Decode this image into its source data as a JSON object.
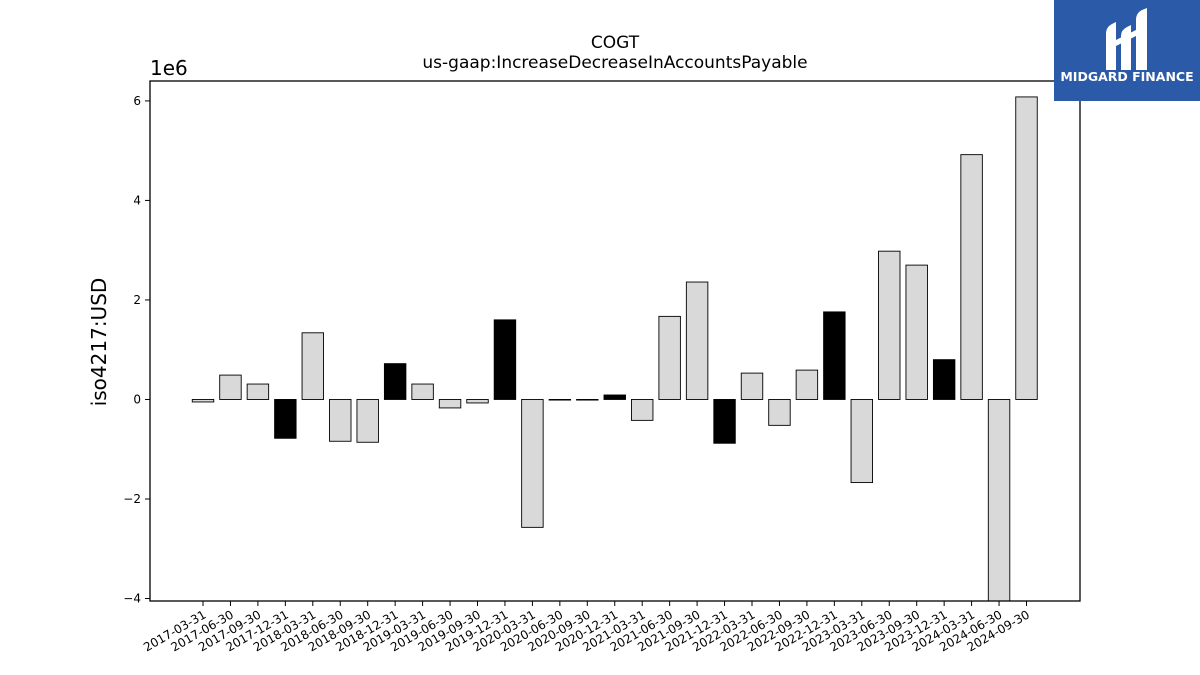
{
  "brand": {
    "name": "MIDGARD FINANCE",
    "color": "#2b5aa8",
    "icon": "midgard-logo-icon"
  },
  "chart_data": {
    "type": "bar",
    "title": "COGT",
    "subtitle": "us-gaap:IncreaseDecreaseInAccountsPayable",
    "ylabel": "iso4217:USD",
    "xlabel": "",
    "y_multiplier_label": "1e6",
    "ylim": [
      -4.05,
      6.4
    ],
    "yticks": [
      -4,
      -2,
      0,
      2,
      4,
      6
    ],
    "ytick_labels": [
      "−4",
      "−2",
      "0",
      "2",
      "4",
      "6"
    ],
    "grid": false,
    "colors": {
      "default": "#d9d9d9",
      "highlight": "#000000",
      "edge": "#000000"
    },
    "categories": [
      "2017-03-31",
      "2017-06-30",
      "2017-09-30",
      "2017-12-31",
      "2018-03-31",
      "2018-06-30",
      "2018-09-30",
      "2018-12-31",
      "2019-03-31",
      "2019-06-30",
      "2019-09-30",
      "2019-12-31",
      "2020-03-31",
      "2020-06-30",
      "2020-09-30",
      "2020-12-31",
      "2021-03-31",
      "2021-06-30",
      "2021-09-30",
      "2021-12-31",
      "2022-03-31",
      "2022-06-30",
      "2022-09-30",
      "2022-12-31",
      "2023-03-31",
      "2023-06-30",
      "2023-09-30",
      "2023-12-31",
      "2024-03-31",
      "2024-06-30",
      "2024-09-30"
    ],
    "values": [
      -0.05,
      0.49,
      0.31,
      -0.78,
      1.34,
      -0.84,
      -0.86,
      0.72,
      0.31,
      -0.17,
      -0.07,
      1.6,
      -2.57,
      0.0,
      0.0,
      0.09,
      -0.42,
      1.67,
      2.36,
      -0.88,
      0.53,
      -0.52,
      0.59,
      1.76,
      -1.67,
      2.98,
      2.7,
      0.8,
      4.92,
      -4.05,
      6.08
    ],
    "highlight": [
      false,
      false,
      false,
      true,
      false,
      false,
      false,
      true,
      false,
      false,
      false,
      true,
      false,
      false,
      false,
      true,
      false,
      false,
      false,
      true,
      false,
      false,
      false,
      true,
      false,
      false,
      false,
      true,
      false,
      false,
      false
    ]
  }
}
